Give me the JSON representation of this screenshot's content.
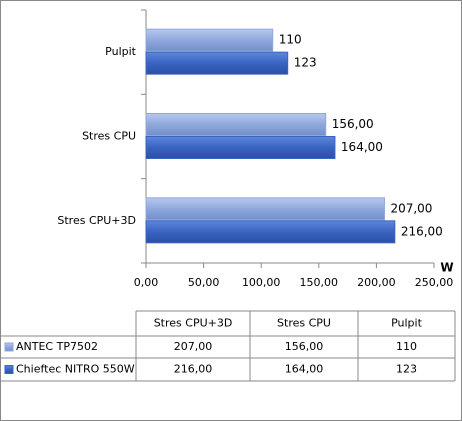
{
  "chart_data": {
    "type": "bar",
    "orientation": "horizontal",
    "categories": [
      "Stres CPU+3D",
      "Stres CPU",
      "Pulpit"
    ],
    "series": [
      {
        "name": "ANTEC TP7502",
        "color": "#8fa8dc",
        "values": [
          207,
          156,
          110
        ],
        "value_labels": [
          "207,00",
          "156,00",
          "110"
        ]
      },
      {
        "name": "Chieftec NITRO 550W",
        "color": "#3a64c2",
        "values": [
          216,
          164,
          123
        ],
        "value_labels": [
          "216,00",
          "164,00",
          "123"
        ]
      }
    ],
    "xlabel": "W",
    "xlim": [
      0,
      250
    ],
    "xticks": [
      {
        "value": 0,
        "label": "0,00"
      },
      {
        "value": 50,
        "label": "50,00"
      },
      {
        "value": 100,
        "label": "100,00"
      },
      {
        "value": 150,
        "label": "150,00"
      },
      {
        "value": 200,
        "label": "200,00"
      },
      {
        "value": 250,
        "label": "250,00"
      }
    ],
    "grid": false,
    "data_table": true
  }
}
